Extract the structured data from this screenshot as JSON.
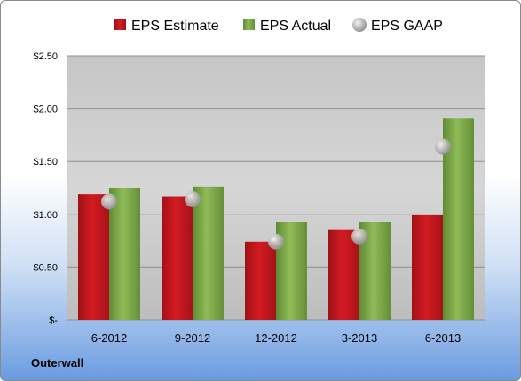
{
  "company": "Outerwall",
  "colors": {
    "estimate": "#c8171e",
    "actual": "#7ea94a",
    "gaap": "#b8b8b8"
  },
  "chart_data": {
    "type": "bar",
    "title": "",
    "xlabel": "",
    "ylabel": "",
    "categories": [
      "6-2012",
      "9-2012",
      "12-2012",
      "3-2013",
      "6-2013"
    ],
    "ylim": [
      0,
      2.5
    ],
    "yticks": [
      0,
      0.5,
      1.0,
      1.5,
      2.0,
      2.5
    ],
    "ytick_labels": [
      "$-",
      "$0.50",
      "$1.00",
      "$1.50",
      "$2.00",
      "$2.50"
    ],
    "grid": true,
    "legend_position": "top",
    "series": [
      {
        "name": "EPS Estimate",
        "kind": "bar",
        "values": [
          1.19,
          1.17,
          0.74,
          0.85,
          0.99
        ]
      },
      {
        "name": "EPS Actual",
        "kind": "bar",
        "values": [
          1.25,
          1.26,
          0.93,
          0.93,
          1.91
        ]
      },
      {
        "name": "EPS GAAP",
        "kind": "marker",
        "values": [
          1.12,
          1.14,
          0.74,
          0.79,
          1.64
        ]
      }
    ]
  }
}
